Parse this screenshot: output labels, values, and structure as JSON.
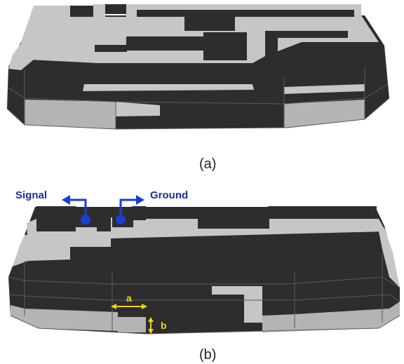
{
  "captions": {
    "top": "(a)",
    "bottom": "(b)"
  },
  "labels": {
    "signal": "Signal",
    "ground": "Ground",
    "dim_a": "a",
    "dim_b": "b"
  },
  "colors": {
    "dark": "#2d2d2d",
    "light": "#c6c6c6",
    "edge": "#5a5a5a",
    "feed": "#1a3fd0",
    "dimension": "#f2d21c"
  }
}
